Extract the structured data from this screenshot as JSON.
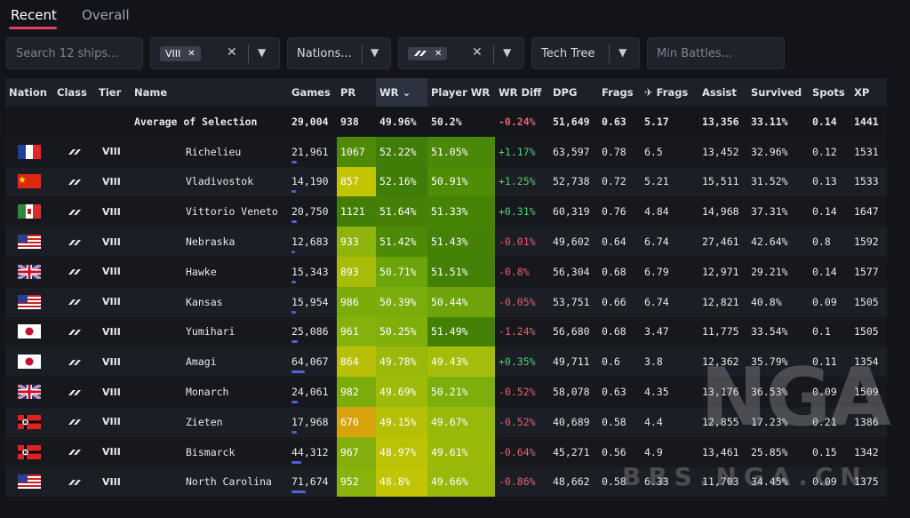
{
  "tabs": [
    {
      "label": "Recent"
    },
    {
      "label": "Overall"
    }
  ],
  "filters": {
    "search_placeholder": "Search 12 ships...",
    "tier_chip": "VIII",
    "nations_label": "Nations...",
    "tech_tree_label": "Tech Tree",
    "min_battles_placeholder": "Min Battles..."
  },
  "columns": [
    "Nation",
    "Class",
    "Tier",
    "Name",
    "Games",
    "PR",
    "WR",
    "Player WR",
    "WR Diff",
    "DPG",
    "Frags",
    "✈ Frags",
    "Assist",
    "Survived",
    "Spots",
    "XP"
  ],
  "average": {
    "label": "Average of Selection",
    "games": "29,004",
    "pr": "938",
    "wr": "49.96%",
    "pwr": "50.2%",
    "diff": "-0.24%",
    "dpg": "51,649",
    "frags": "0.63",
    "pfrags": "5.17",
    "assist": "13,356",
    "survived": "33.11%",
    "spots": "0.14",
    "xp": "1441"
  },
  "rows": [
    {
      "nation": "france",
      "tier": "VIII",
      "name": "Richelieu",
      "games": "21,961",
      "games_n": 21961,
      "pr": "1067",
      "pr_color": "#4e8a06",
      "wr": "52.22%",
      "wr_color": "#3f7c08",
      "pwr": "51.05%",
      "pwr_color": "#4a8807",
      "diff": "+1.17%",
      "dpg": "63,597",
      "frags": "0.78",
      "pfrags": "6.5",
      "assist": "13,452",
      "survived": "32.96%",
      "spots": "0.12",
      "xp": "1531"
    },
    {
      "nation": "china",
      "tier": "VIII",
      "name": "Vladivostok",
      "games": "14,190",
      "games_n": 14190,
      "pr": "857",
      "pr_color": "#c2c400",
      "wr": "52.16%",
      "wr_color": "#3f7c08",
      "pwr": "50.91%",
      "pwr_color": "#4f8d06",
      "diff": "+1.25%",
      "dpg": "52,738",
      "frags": "0.72",
      "pfrags": "5.21",
      "assist": "15,511",
      "survived": "31.52%",
      "spots": "0.13",
      "xp": "1533"
    },
    {
      "nation": "italy",
      "tier": "VIII",
      "name": "Vittorio Veneto",
      "games": "20,750",
      "games_n": 20750,
      "pr": "1121",
      "pr_color": "#437f07",
      "wr": "51.64%",
      "wr_color": "#477f07",
      "pwr": "51.33%",
      "pwr_color": "#468406",
      "diff": "+0.31%",
      "dpg": "60,319",
      "frags": "0.76",
      "pfrags": "4.84",
      "assist": "14,968",
      "survived": "37.31%",
      "spots": "0.14",
      "xp": "1647"
    },
    {
      "nation": "usa",
      "tier": "VIII",
      "name": "Nebraska",
      "games": "12,683",
      "games_n": 12683,
      "pr": "933",
      "pr_color": "#8fb40c",
      "wr": "51.42%",
      "wr_color": "#4d8a06",
      "pwr": "51.43%",
      "pwr_color": "#448206",
      "diff": "-0.01%",
      "dpg": "49,602",
      "frags": "0.64",
      "pfrags": "6.74",
      "assist": "27,461",
      "survived": "42.64%",
      "spots": "0.8",
      "xp": "1592"
    },
    {
      "nation": "uk",
      "tier": "VIII",
      "name": "Hawke",
      "games": "15,343",
      "games_n": 15343,
      "pr": "893",
      "pr_color": "#a8bb08",
      "wr": "50.71%",
      "wr_color": "#6ca40a",
      "pwr": "51.51%",
      "pwr_color": "#428006",
      "diff": "-0.8%",
      "dpg": "56,304",
      "frags": "0.68",
      "pfrags": "6.79",
      "assist": "12,971",
      "survived": "29.21%",
      "spots": "0.14",
      "xp": "1577"
    },
    {
      "nation": "usa",
      "tier": "VIII",
      "name": "Kansas",
      "games": "15,954",
      "games_n": 15954,
      "pr": "986",
      "pr_color": "#7aab0b",
      "wr": "50.39%",
      "wr_color": "#7aac0b",
      "pwr": "50.44%",
      "pwr_color": "#6ea40a",
      "diff": "-0.05%",
      "dpg": "53,751",
      "frags": "0.66",
      "pfrags": "6.74",
      "assist": "12,821",
      "survived": "40.8%",
      "spots": "0.09",
      "xp": "1505"
    },
    {
      "nation": "japan",
      "tier": "VIII",
      "name": "Yumihari",
      "games": "25,086",
      "games_n": 25086,
      "pr": "961",
      "pr_color": "#85b10c",
      "wr": "50.25%",
      "wr_color": "#80af0b",
      "pwr": "51.49%",
      "pwr_color": "#438106",
      "diff": "-1.24%",
      "dpg": "56,680",
      "frags": "0.68",
      "pfrags": "3.47",
      "assist": "11,775",
      "survived": "33.54%",
      "spots": "0.1",
      "xp": "1505"
    },
    {
      "nation": "japan",
      "tier": "VIII",
      "name": "Amagi",
      "games": "64,067",
      "games_n": 64067,
      "pr": "864",
      "pr_color": "#b8bf06",
      "wr": "49.78%",
      "wr_color": "#9ab90a",
      "pwr": "49.43%",
      "pwr_color": "#a5bd08",
      "diff": "+0.35%",
      "dpg": "49,711",
      "frags": "0.6",
      "pfrags": "3.8",
      "assist": "12,362",
      "survived": "35.79%",
      "spots": "0.11",
      "xp": "1354"
    },
    {
      "nation": "uk",
      "tier": "VIII",
      "name": "Monarch",
      "games": "24,061",
      "games_n": 24061,
      "pr": "982",
      "pr_color": "#7cac0b",
      "wr": "49.69%",
      "wr_color": "#9eba09",
      "pwr": "50.21%",
      "pwr_color": "#7caf0b",
      "diff": "-0.52%",
      "dpg": "58,078",
      "frags": "0.63",
      "pfrags": "4.35",
      "assist": "13,176",
      "survived": "36.53%",
      "spots": "0.09",
      "xp": "1509"
    },
    {
      "nation": "germany",
      "tier": "VIII",
      "name": "Zieten",
      "games": "17,968",
      "games_n": 17968,
      "pr": "670",
      "pr_color": "#d7a20c",
      "wr": "49.15%",
      "wr_color": "#b4c006",
      "pwr": "49.67%",
      "pwr_color": "#97b90a",
      "diff": "-0.52%",
      "dpg": "40,689",
      "frags": "0.58",
      "pfrags": "4.4",
      "assist": "12,855",
      "survived": "17.23%",
      "spots": "0.21",
      "xp": "1386"
    },
    {
      "nation": "germany",
      "tier": "VIII",
      "name": "Bismarck",
      "games": "44,312",
      "games_n": 44312,
      "pr": "967",
      "pr_color": "#82af0b",
      "wr": "48.97%",
      "wr_color": "#bcc205",
      "pwr": "49.61%",
      "pwr_color": "#9bb909",
      "diff": "-0.64%",
      "dpg": "45,271",
      "frags": "0.56",
      "pfrags": "4.9",
      "assist": "13,461",
      "survived": "25.85%",
      "spots": "0.15",
      "xp": "1342"
    },
    {
      "nation": "usa",
      "tier": "VIII",
      "name": "North Carolina",
      "games": "71,674",
      "games_n": 71674,
      "pr": "952",
      "pr_color": "#88b20c",
      "wr": "48.8%",
      "wr_color": "#c2c404",
      "pwr": "49.66%",
      "pwr_color": "#98b90a",
      "diff": "-0.86%",
      "dpg": "48,662",
      "frags": "0.58",
      "pfrags": "6.33",
      "assist": "11,703",
      "survived": "34.45%",
      "spots": "0.09",
      "xp": "1375"
    }
  ],
  "watermark": {
    "logo": "NGA",
    "url": "BBS.NGA.CN"
  }
}
